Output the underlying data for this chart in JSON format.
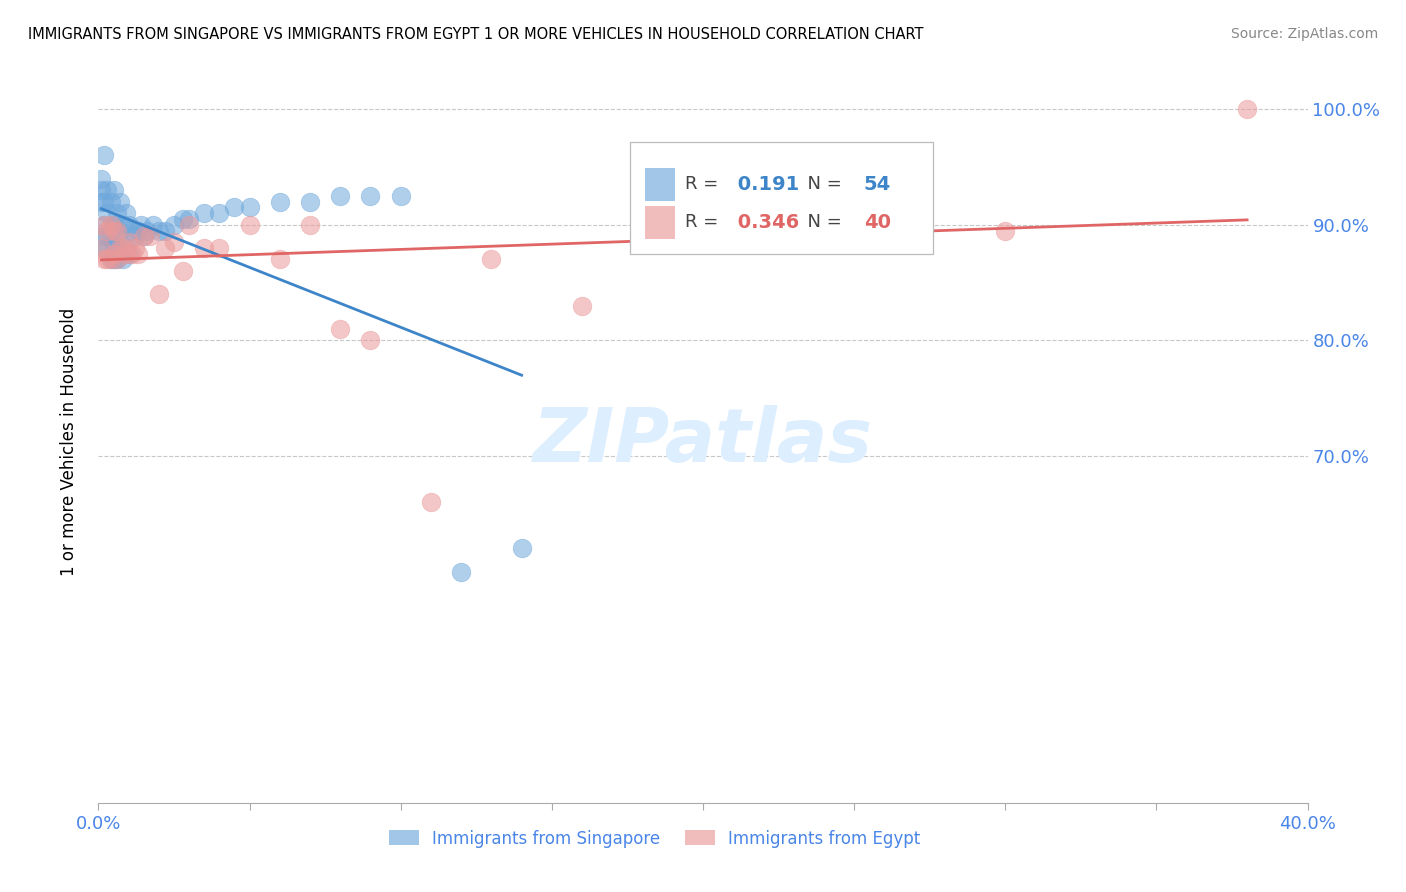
{
  "title": "IMMIGRANTS FROM SINGAPORE VS IMMIGRANTS FROM EGYPT 1 OR MORE VEHICLES IN HOUSEHOLD CORRELATION CHART",
  "source": "Source: ZipAtlas.com",
  "ylabel": "1 or more Vehicles in Household",
  "xmin": 0.0,
  "xmax": 0.4,
  "ymin": 0.4,
  "ymax": 1.025,
  "yticks": [
    1.0,
    0.9,
    0.8,
    0.7
  ],
  "ytick_labels": [
    "100.0%",
    "90.0%",
    "80.0%",
    "70.0%"
  ],
  "xticks": [
    0.0,
    0.05,
    0.1,
    0.15,
    0.2,
    0.25,
    0.3,
    0.35,
    0.4
  ],
  "legend_R_singapore": "0.191",
  "legend_N_singapore": "54",
  "legend_R_egypt": "0.346",
  "legend_N_egypt": "40",
  "singapore_color": "#6fa8dc",
  "egypt_color": "#ea9999",
  "singapore_line_color": "#3d85c8",
  "egypt_line_color": "#e06666",
  "axis_color": "#4a86e8",
  "grid_color": "#c8c8c8",
  "watermark_text": "ZIPatlas",
  "watermark_color": "#ddeeff",
  "sg_x": [
    0.001,
    0.001,
    0.001,
    0.002,
    0.002,
    0.002,
    0.002,
    0.002,
    0.003,
    0.003,
    0.003,
    0.003,
    0.004,
    0.004,
    0.004,
    0.005,
    0.005,
    0.005,
    0.005,
    0.006,
    0.006,
    0.006,
    0.007,
    0.007,
    0.007,
    0.008,
    0.008,
    0.009,
    0.009,
    0.01,
    0.01,
    0.011,
    0.012,
    0.013,
    0.014,
    0.015,
    0.016,
    0.018,
    0.02,
    0.022,
    0.025,
    0.028,
    0.03,
    0.035,
    0.04,
    0.045,
    0.05,
    0.06,
    0.07,
    0.08,
    0.09,
    0.1,
    0.12,
    0.14
  ],
  "sg_y": [
    0.92,
    0.93,
    0.94,
    0.88,
    0.89,
    0.9,
    0.92,
    0.96,
    0.88,
    0.89,
    0.91,
    0.93,
    0.87,
    0.89,
    0.92,
    0.87,
    0.88,
    0.9,
    0.93,
    0.87,
    0.89,
    0.91,
    0.88,
    0.895,
    0.92,
    0.87,
    0.9,
    0.88,
    0.91,
    0.875,
    0.9,
    0.895,
    0.89,
    0.895,
    0.9,
    0.89,
    0.895,
    0.9,
    0.895,
    0.895,
    0.9,
    0.905,
    0.905,
    0.91,
    0.91,
    0.915,
    0.915,
    0.92,
    0.92,
    0.925,
    0.925,
    0.925,
    0.6,
    0.62
  ],
  "eg_x": [
    0.001,
    0.002,
    0.002,
    0.003,
    0.003,
    0.004,
    0.004,
    0.005,
    0.005,
    0.006,
    0.006,
    0.007,
    0.008,
    0.009,
    0.01,
    0.011,
    0.012,
    0.013,
    0.015,
    0.017,
    0.02,
    0.022,
    0.025,
    0.028,
    0.03,
    0.035,
    0.04,
    0.05,
    0.06,
    0.07,
    0.08,
    0.09,
    0.11,
    0.13,
    0.16,
    0.19,
    0.22,
    0.25,
    0.3,
    0.38
  ],
  "eg_y": [
    0.88,
    0.87,
    0.9,
    0.87,
    0.895,
    0.87,
    0.9,
    0.875,
    0.895,
    0.87,
    0.895,
    0.88,
    0.88,
    0.875,
    0.885,
    0.875,
    0.88,
    0.875,
    0.89,
    0.89,
    0.84,
    0.88,
    0.885,
    0.86,
    0.9,
    0.88,
    0.88,
    0.9,
    0.87,
    0.9,
    0.81,
    0.8,
    0.66,
    0.87,
    0.83,
    0.9,
    0.895,
    0.9,
    0.895,
    1.0
  ]
}
